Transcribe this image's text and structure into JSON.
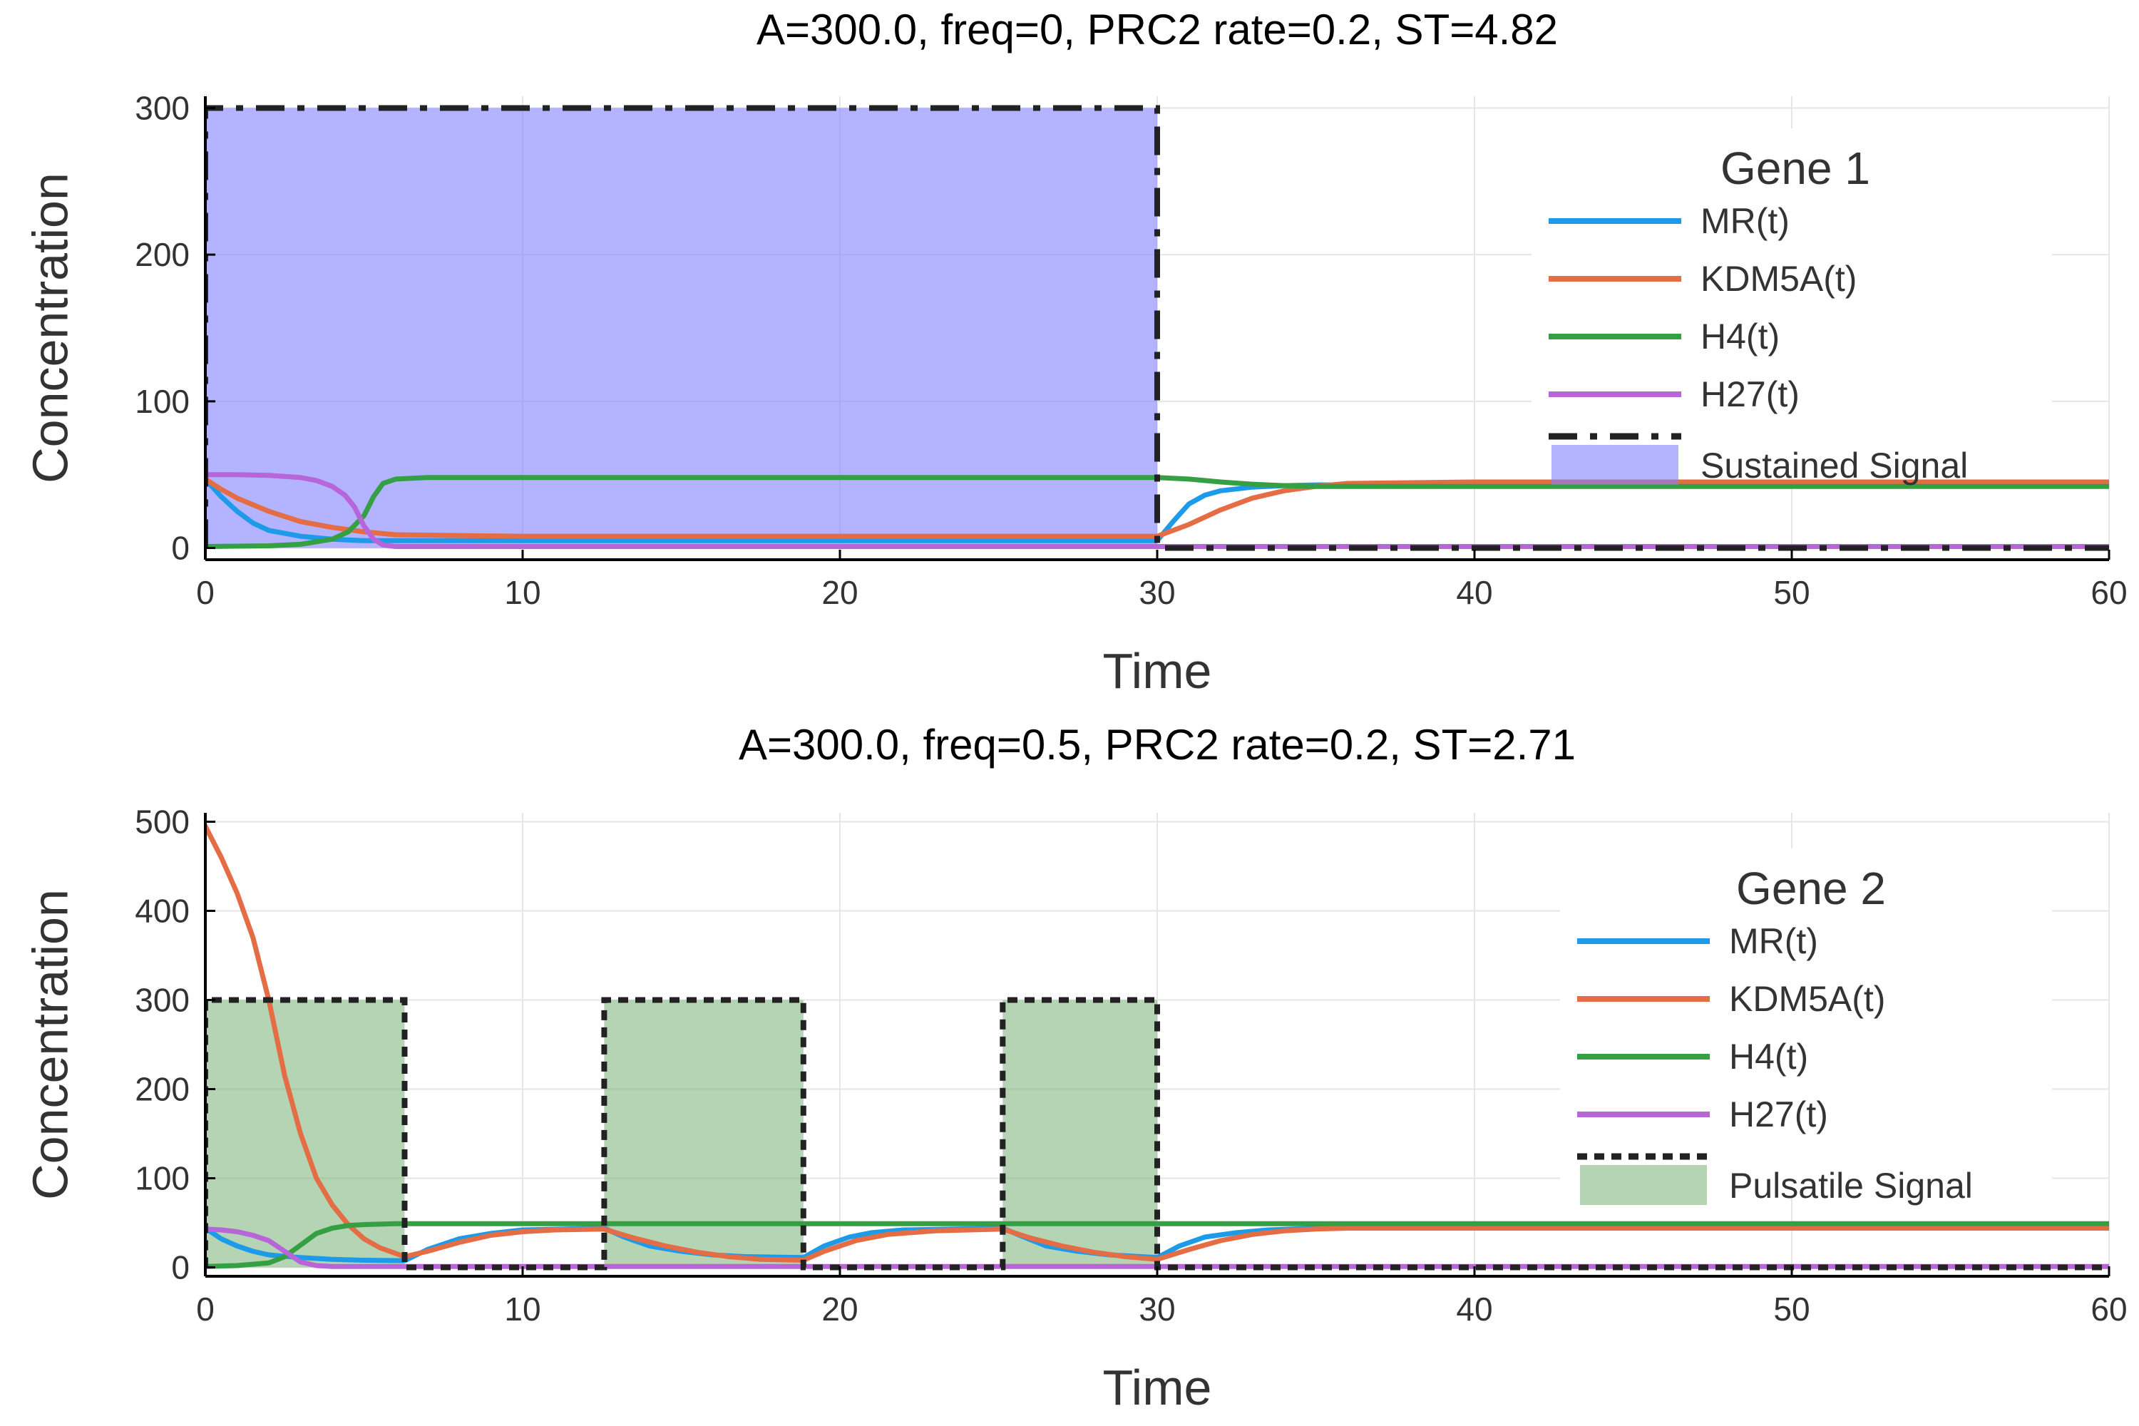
{
  "chart_data": [
    {
      "type": "line",
      "title": "A=300.0, freq=0, PRC2 rate=0.2,  ST=4.82",
      "xlabel": "Time",
      "ylabel": "Concentration",
      "xlim": [
        0,
        60
      ],
      "ylim": [
        -8,
        308
      ],
      "xticks": [
        0,
        10,
        20,
        30,
        40,
        50,
        60
      ],
      "yticks": [
        0,
        100,
        200,
        300
      ],
      "grid": true,
      "legend_title": "Gene 1",
      "legend_position": "right",
      "signal": {
        "name": "Sustained Signal",
        "color": "#8080ff",
        "opacity": 0.6,
        "amplitude": 300,
        "pulses": [
          [
            0,
            30
          ]
        ],
        "line_style": "dashdot"
      },
      "series": [
        {
          "name": "MR(t)",
          "color": "#1e9be8",
          "x": [
            0,
            0.5,
            1,
            1.5,
            2,
            3,
            4,
            5,
            6,
            10,
            20,
            29.9,
            30,
            30.5,
            31,
            31.5,
            32,
            33,
            34,
            35,
            40,
            50,
            60
          ],
          "y": [
            47,
            35,
            25,
            17,
            12,
            8,
            6,
            5,
            5,
            5,
            5,
            5,
            5,
            18,
            30,
            36,
            39,
            41.5,
            42.5,
            43,
            43,
            43,
            43
          ]
        },
        {
          "name": "KDM5A(t)",
          "color": "#e46d45",
          "x": [
            0,
            0.5,
            1,
            2,
            3,
            4,
            5,
            6,
            8,
            10,
            20,
            29.9,
            30,
            31,
            32,
            33,
            34,
            35,
            36,
            40,
            50,
            60
          ],
          "y": [
            47,
            40,
            34,
            25,
            18,
            14,
            11,
            9,
            8.5,
            8,
            8,
            8,
            8,
            16,
            26,
            34,
            39,
            42,
            44,
            45,
            45,
            45
          ]
        },
        {
          "name": "H4(t)",
          "color": "#35a043",
          "x": [
            0,
            2,
            3,
            4,
            4.5,
            5,
            5.3,
            5.6,
            6,
            7,
            10,
            20,
            30,
            31,
            32,
            33,
            34,
            35,
            40,
            50,
            60
          ],
          "y": [
            1,
            1.5,
            2.5,
            6,
            11,
            22,
            35,
            44,
            47,
            48,
            48,
            48,
            48,
            47,
            45,
            43.5,
            42.5,
            42,
            42,
            42,
            42
          ]
        },
        {
          "name": "H27(t)",
          "color": "#b765d8",
          "x": [
            0,
            1,
            2,
            3,
            3.5,
            4,
            4.4,
            4.7,
            5,
            5.3,
            5.6,
            6,
            10,
            20,
            30,
            40,
            50,
            60
          ],
          "y": [
            50,
            50,
            49.5,
            48,
            46,
            42,
            36,
            28,
            15,
            6,
            2,
            1,
            1,
            1,
            1,
            1,
            1,
            1
          ]
        }
      ]
    },
    {
      "type": "line",
      "title": "A=300.0, freq=0.5, PRC2 rate=0.2,  ST=2.71",
      "xlabel": "Time",
      "ylabel": "Concentration",
      "xlim": [
        0,
        60
      ],
      "ylim": [
        -10,
        510
      ],
      "xticks": [
        0,
        10,
        20,
        30,
        40,
        50,
        60
      ],
      "yticks": [
        0,
        100,
        200,
        300,
        400,
        500
      ],
      "grid": true,
      "legend_title": "Gene 2",
      "legend_position": "right",
      "signal": {
        "name": "Pulsatile Signal",
        "color": "#6aaa6a",
        "opacity": 0.5,
        "amplitude": 300,
        "pulses": [
          [
            0,
            6.28
          ],
          [
            12.57,
            18.85
          ],
          [
            25.13,
            30
          ]
        ],
        "line_style": "dot"
      },
      "series": [
        {
          "name": "MR(t)",
          "color": "#1e9be8",
          "x": [
            0,
            0.5,
            1,
            1.5,
            2,
            3,
            4,
            5,
            6.28,
            7,
            8,
            9,
            10,
            12.57,
            13.2,
            14,
            15,
            16,
            17,
            18.85,
            19.5,
            20.3,
            21,
            22,
            25.13,
            25.8,
            26.5,
            27.5,
            28.5,
            30,
            30.7,
            31.5,
            32.5,
            33.5,
            35,
            40,
            50,
            60
          ],
          "y": [
            44,
            32,
            24,
            18,
            14,
            11,
            9,
            8,
            7.5,
            20,
            32,
            38,
            42,
            44,
            34,
            24,
            18,
            14,
            12,
            11,
            24,
            34,
            39,
            42,
            44,
            34,
            24,
            18,
            14,
            11,
            24,
            34,
            39,
            42,
            44,
            44,
            44,
            44
          ]
        },
        {
          "name": "KDM5A(t)",
          "color": "#e46d45",
          "x": [
            0,
            0.5,
            1,
            1.5,
            2,
            2.5,
            3,
            3.5,
            4,
            4.5,
            5,
            5.5,
            6.28,
            7,
            8,
            9,
            10,
            11,
            12.57,
            13.5,
            14.5,
            15.5,
            16.5,
            17.5,
            18.85,
            19.5,
            20.5,
            21.5,
            23,
            25.13,
            26,
            27,
            28,
            29,
            30,
            31,
            32,
            33,
            34,
            35,
            36,
            40,
            50,
            60
          ],
          "y": [
            495,
            460,
            420,
            370,
            300,
            215,
            150,
            100,
            70,
            48,
            32,
            22,
            12,
            18,
            28,
            36,
            40,
            42,
            43,
            33,
            24,
            17,
            12,
            9,
            8,
            18,
            30,
            37,
            41,
            43,
            33,
            24,
            17,
            12,
            9,
            20,
            30,
            37,
            41,
            43,
            44,
            44,
            44,
            44
          ]
        },
        {
          "name": "H4(t)",
          "color": "#35a043",
          "x": [
            0,
            1,
            2,
            2.5,
            3,
            3.5,
            4,
            4.5,
            5,
            6,
            8,
            10,
            20,
            30,
            40,
            50,
            60
          ],
          "y": [
            1,
            2,
            5,
            12,
            25,
            38,
            44,
            47,
            48,
            49,
            49,
            49,
            49,
            49,
            49,
            49,
            49
          ]
        },
        {
          "name": "H27(t)",
          "color": "#b765d8",
          "x": [
            0,
            0.5,
            1,
            1.5,
            2,
            2.5,
            3,
            3.5,
            4,
            5,
            10,
            20,
            30,
            40,
            50,
            60
          ],
          "y": [
            43,
            42,
            40,
            36,
            30,
            18,
            6,
            2,
            1,
            1,
            1,
            1,
            1,
            1,
            1,
            1
          ]
        }
      ]
    }
  ]
}
